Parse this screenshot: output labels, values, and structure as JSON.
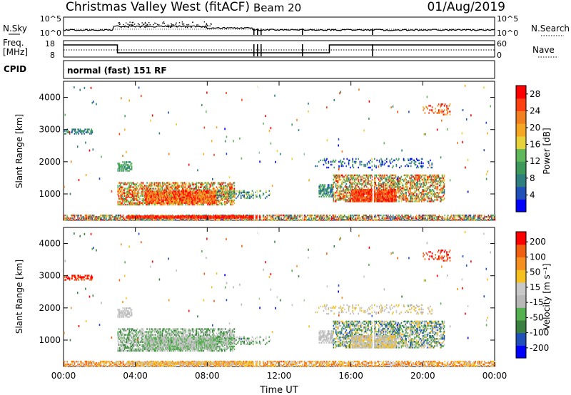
{
  "header": {
    "station": "Christmas Valley West (fitACF)",
    "beam": "Beam 20",
    "date": "01/Aug/2019"
  },
  "strip": {
    "nsky_label": "N.Sky",
    "nsky_ticks": [
      "10^5",
      "10^0"
    ],
    "nsearch_label": "N.Search",
    "freq_label": "Freq.",
    "freq_unit": "[MHz]",
    "freq_ticks": [
      "18",
      "8"
    ],
    "nave_ticks": [
      "60",
      "0"
    ],
    "nave_label": "Nave",
    "cpid_label": "CPID",
    "cpid_text": "normal (fast) 151 RF"
  },
  "colors": {
    "power_scale": [
      "#0000ff",
      "#2050b8",
      "#2f7f7f",
      "#3d9a5a",
      "#5fb85a",
      "#e8d23a",
      "#f5a623",
      "#f08020",
      "#ff4010",
      "#ff0000"
    ],
    "velocity_scale": [
      "#0000ff",
      "#2050b8",
      "#3a8040",
      "#55b050",
      "#b8b8b8",
      "#c8c8c8",
      "#f5c020",
      "#f59020",
      "#f06010",
      "#ff0000"
    ]
  },
  "chart_data": [
    {
      "type": "heatmap",
      "name": "power",
      "ylabel": "Slant Range [km]",
      "xlabel": "",
      "x_ticks": [
        "00:00",
        "04:00",
        "08:00",
        "12:00",
        "16:00",
        "20:00",
        "00:00"
      ],
      "y_ticks": [
        "1000",
        "2000",
        "3000",
        "4000"
      ],
      "ylim": [
        180,
        4500
      ],
      "colorbar_label": "Power [dB]",
      "colorbar_ticks": [
        "4",
        "8",
        "12",
        "16",
        "20",
        "24",
        "28"
      ],
      "colorbar_range": [
        0,
        30
      ]
    },
    {
      "type": "heatmap",
      "name": "velocity",
      "ylabel": "Slant Range [km]",
      "xlabel": "Time UT",
      "x_ticks": [
        "00:00",
        "04:00",
        "08:00",
        "12:00",
        "16:00",
        "20:00",
        "00:00"
      ],
      "y_ticks": [
        "1000",
        "2000",
        "3000",
        "4000"
      ],
      "ylim": [
        180,
        4500
      ],
      "colorbar_label": "Velocity [m s⁻¹]",
      "colorbar_ticks": [
        "200",
        "100",
        "50",
        "15",
        "-15",
        "-50",
        "-100",
        "-200"
      ]
    }
  ]
}
